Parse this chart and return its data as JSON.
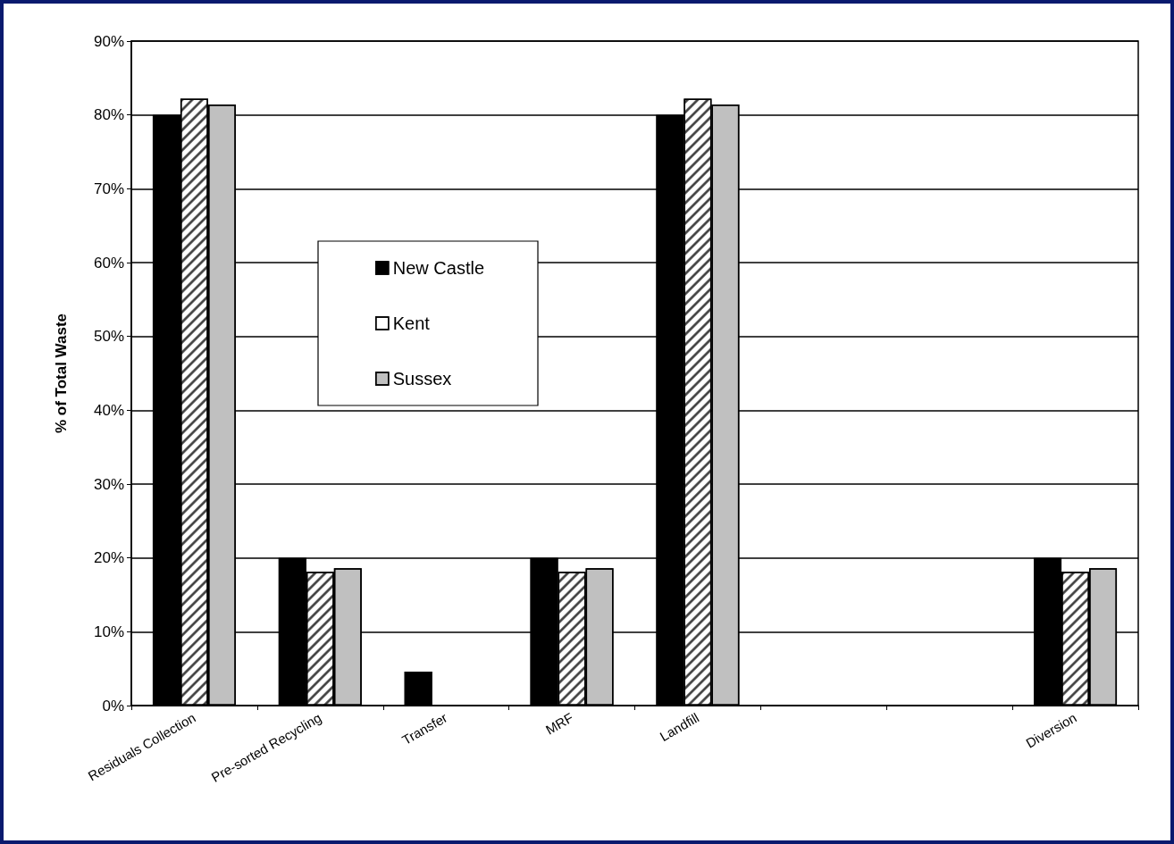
{
  "chart_data": {
    "type": "bar",
    "ylabel": "% of Total Waste",
    "categories": [
      "Residuals Collection",
      "Pre-sorted Recycling",
      "Transfer",
      "MRF",
      "Landfill",
      null,
      null,
      "Diversion"
    ],
    "series": [
      {
        "name": "New Castle",
        "color": "#000000",
        "values": [
          80,
          20,
          4.6,
          20,
          80,
          null,
          null,
          20
        ]
      },
      {
        "name": "Kent",
        "color": "#ffffff",
        "values": [
          82.2,
          18.1,
          null,
          18.1,
          82.2,
          null,
          null,
          18.1
        ]
      },
      {
        "name": "Sussex",
        "color": "#c0c0c0",
        "values": [
          81.4,
          18.6,
          null,
          18.6,
          81.4,
          null,
          null,
          18.6
        ]
      }
    ],
    "ylim": [
      0,
      90
    ],
    "yticks": [
      {
        "value": 0,
        "label": "0%"
      },
      {
        "value": 10,
        "label": "10%"
      },
      {
        "value": 20,
        "label": "20%"
      },
      {
        "value": 30,
        "label": "30%"
      },
      {
        "value": 40,
        "label": "40%"
      },
      {
        "value": 50,
        "label": "50%"
      },
      {
        "value": 60,
        "label": "60%"
      },
      {
        "value": 70,
        "label": "70%"
      },
      {
        "value": 80,
        "label": "80%"
      },
      {
        "value": 90,
        "label": "90%"
      }
    ],
    "grid": "y",
    "legend": "center"
  }
}
